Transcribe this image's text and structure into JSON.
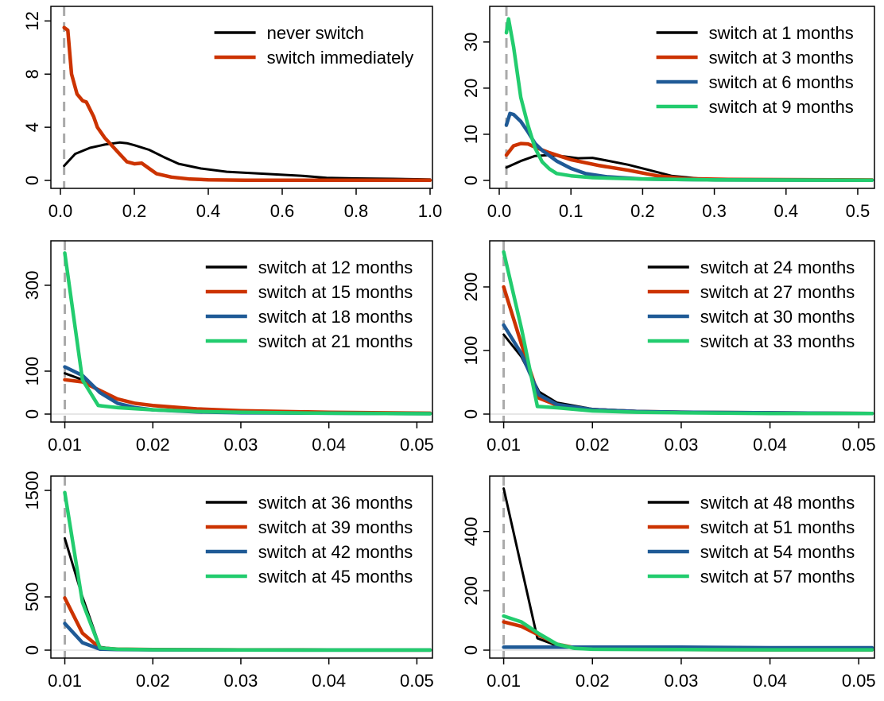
{
  "colors": {
    "black": "#000000",
    "red": "#cc3300",
    "blue": "#1f5a96",
    "green": "#22cc6e",
    "marker": "#aaaaaa"
  },
  "chart_data": [
    {
      "type": "line",
      "xlim": [
        0,
        1
      ],
      "ylim": [
        0,
        12.5
      ],
      "xticks": [
        0,
        0.2,
        0.4,
        0.6,
        0.8,
        1
      ],
      "xtick_labels": [
        "0.0",
        "0.2",
        "0.4",
        "0.6",
        "0.8",
        "1.0"
      ],
      "yticks": [
        0,
        4,
        8,
        12
      ],
      "ytick_labels": [
        "0",
        "4",
        "8",
        "12"
      ],
      "marker_x": 0.01,
      "zero_line": false,
      "legend": "top-right",
      "grid": false,
      "series": [
        {
          "name": "never switch",
          "color": "black",
          "x": [
            0.01,
            0.04,
            0.08,
            0.12,
            0.16,
            0.18,
            0.2,
            0.24,
            0.28,
            0.32,
            0.38,
            0.45,
            0.55,
            0.65,
            0.72,
            0.8,
            0.9,
            1.0
          ],
          "y": [
            1.1,
            2.0,
            2.45,
            2.7,
            2.85,
            2.8,
            2.65,
            2.3,
            1.75,
            1.25,
            0.9,
            0.65,
            0.5,
            0.35,
            0.2,
            0.15,
            0.12,
            0.08
          ]
        },
        {
          "name": "switch immediately",
          "color": "red",
          "x": [
            0.01,
            0.02,
            0.03,
            0.045,
            0.06,
            0.07,
            0.09,
            0.1,
            0.12,
            0.14,
            0.16,
            0.18,
            0.2,
            0.22,
            0.24,
            0.26,
            0.3,
            0.35,
            0.4,
            0.5,
            1.0
          ],
          "y": [
            11.5,
            11.3,
            8.0,
            6.5,
            6.0,
            5.9,
            4.8,
            4.0,
            3.2,
            2.6,
            2.0,
            1.4,
            1.25,
            1.3,
            0.9,
            0.5,
            0.25,
            0.1,
            0.05,
            0.02,
            0.01
          ]
        }
      ]
    },
    {
      "type": "line",
      "xlim": [
        0,
        0.52
      ],
      "ylim": [
        0,
        36
      ],
      "xticks": [
        0,
        0.1,
        0.2,
        0.3,
        0.4,
        0.5
      ],
      "xtick_labels": [
        "0.0",
        "0.1",
        "0.2",
        "0.3",
        "0.4",
        "0.5"
      ],
      "yticks": [
        0,
        10,
        20,
        30
      ],
      "ytick_labels": [
        "0",
        "10",
        "20",
        "30"
      ],
      "marker_x": 0.01,
      "zero_line": false,
      "legend": "top-right",
      "grid": false,
      "series": [
        {
          "name": "switch at 1 months",
          "color": "black",
          "x": [
            0.01,
            0.03,
            0.05,
            0.07,
            0.09,
            0.11,
            0.13,
            0.15,
            0.18,
            0.21,
            0.24,
            0.28,
            0.35,
            0.52
          ],
          "y": [
            2.8,
            4.2,
            5.3,
            5.5,
            5.2,
            4.8,
            4.9,
            4.3,
            3.4,
            2.2,
            1.0,
            0.4,
            0.2,
            0.1
          ]
        },
        {
          "name": "switch at 3 months",
          "color": "red",
          "x": [
            0.01,
            0.02,
            0.03,
            0.04,
            0.05,
            0.07,
            0.1,
            0.14,
            0.18,
            0.22,
            0.26,
            0.32,
            0.52
          ],
          "y": [
            5.5,
            7.5,
            8.0,
            7.9,
            7.2,
            6.0,
            4.5,
            3.2,
            2.2,
            1.0,
            0.4,
            0.2,
            0.1
          ]
        },
        {
          "name": "switch at 6 months",
          "color": "blue",
          "x": [
            0.01,
            0.015,
            0.02,
            0.03,
            0.04,
            0.05,
            0.06,
            0.08,
            0.1,
            0.12,
            0.15,
            0.2,
            0.3,
            0.52
          ],
          "y": [
            12.0,
            14.5,
            14.3,
            12.8,
            10.5,
            8.0,
            6.5,
            4.2,
            2.6,
            1.5,
            0.8,
            0.3,
            0.1,
            0.05
          ]
        },
        {
          "name": "switch at 9 months",
          "color": "green",
          "x": [
            0.01,
            0.013,
            0.02,
            0.03,
            0.04,
            0.05,
            0.06,
            0.07,
            0.08,
            0.1,
            0.13,
            0.2,
            0.3,
            0.52
          ],
          "y": [
            32.0,
            35.0,
            29.0,
            18.0,
            12.0,
            7.0,
            4.0,
            2.5,
            1.5,
            1.0,
            0.6,
            0.3,
            0.1,
            0.05
          ]
        }
      ]
    },
    {
      "type": "line",
      "xlim": [
        0.0095,
        0.0515
      ],
      "ylim": [
        0,
        385
      ],
      "xticks": [
        0.01,
        0.02,
        0.03,
        0.04,
        0.05
      ],
      "xtick_labels": [
        "0.01",
        "0.02",
        "0.03",
        "0.04",
        "0.05"
      ],
      "yticks": [
        0,
        100,
        300
      ],
      "ytick_labels": [
        "0",
        "100",
        "300"
      ],
      "marker_x": 0.01,
      "zero_line": true,
      "legend": "top-right",
      "grid": false,
      "series": [
        {
          "name": "switch at 12 months",
          "color": "black",
          "x": [
            0.01,
            0.012,
            0.014,
            0.016,
            0.018,
            0.02,
            0.025,
            0.03,
            0.04,
            0.0515
          ],
          "y": [
            95,
            80,
            55,
            25,
            15,
            10,
            5,
            3,
            2,
            1
          ]
        },
        {
          "name": "switch at 15 months",
          "color": "red",
          "x": [
            0.01,
            0.012,
            0.014,
            0.016,
            0.018,
            0.02,
            0.025,
            0.03,
            0.04,
            0.0515
          ],
          "y": [
            80,
            75,
            55,
            35,
            25,
            20,
            12,
            8,
            4,
            2
          ]
        },
        {
          "name": "switch at 18 months",
          "color": "blue",
          "x": [
            0.01,
            0.012,
            0.014,
            0.016,
            0.018,
            0.02,
            0.025,
            0.03,
            0.04,
            0.0515
          ],
          "y": [
            110,
            90,
            50,
            25,
            15,
            10,
            5,
            3,
            2,
            1
          ]
        },
        {
          "name": "switch at 21 months",
          "color": "green",
          "x": [
            0.01,
            0.012,
            0.0138,
            0.016,
            0.02,
            0.025,
            0.03,
            0.04,
            0.0515
          ],
          "y": [
            375,
            80,
            20,
            15,
            10,
            6,
            4,
            2,
            1
          ]
        }
      ]
    },
    {
      "type": "line",
      "xlim": [
        0.0095,
        0.0515
      ],
      "ylim": [
        0,
        260
      ],
      "xticks": [
        0.01,
        0.02,
        0.03,
        0.04,
        0.05
      ],
      "xtick_labels": [
        "0.01",
        "0.02",
        "0.03",
        "0.04",
        "0.05"
      ],
      "yticks": [
        0,
        100,
        200
      ],
      "ytick_labels": [
        "0",
        "100",
        "200"
      ],
      "marker_x": 0.01,
      "zero_line": true,
      "legend": "top-right",
      "grid": false,
      "series": [
        {
          "name": "switch at 24 months",
          "color": "black",
          "x": [
            0.01,
            0.012,
            0.014,
            0.016,
            0.02,
            0.025,
            0.03,
            0.04,
            0.0515
          ],
          "y": [
            125,
            90,
            35,
            18,
            8,
            5,
            3,
            2,
            1
          ]
        },
        {
          "name": "switch at 27 months",
          "color": "red",
          "x": [
            0.01,
            0.012,
            0.014,
            0.016,
            0.02,
            0.025,
            0.03,
            0.04,
            0.0515
          ],
          "y": [
            200,
            110,
            25,
            14,
            7,
            4,
            3,
            2,
            1
          ]
        },
        {
          "name": "switch at 30 months",
          "color": "blue",
          "x": [
            0.01,
            0.012,
            0.014,
            0.016,
            0.02,
            0.025,
            0.03,
            0.04,
            0.0515
          ],
          "y": [
            140,
            95,
            30,
            15,
            7,
            4,
            3,
            2,
            1
          ]
        },
        {
          "name": "switch at 33 months",
          "color": "green",
          "x": [
            0.01,
            0.012,
            0.0138,
            0.016,
            0.02,
            0.025,
            0.03,
            0.04,
            0.0515
          ],
          "y": [
            255,
            135,
            12,
            10,
            5,
            3,
            2,
            1,
            1
          ]
        }
      ]
    },
    {
      "type": "line",
      "xlim": [
        0.0095,
        0.0515
      ],
      "ylim": [
        0,
        1560
      ],
      "xticks": [
        0.01,
        0.02,
        0.03,
        0.04,
        0.05
      ],
      "xtick_labels": [
        "0.01",
        "0.02",
        "0.03",
        "0.04",
        "0.05"
      ],
      "yticks": [
        0,
        500,
        1500
      ],
      "ytick_labels": [
        "0",
        "500",
        "1500"
      ],
      "marker_x": 0.01,
      "zero_line": true,
      "legend": "top-right",
      "grid": false,
      "series": [
        {
          "name": "switch at 36 months",
          "color": "black",
          "x": [
            0.01,
            0.012,
            0.014,
            0.016,
            0.02,
            0.03,
            0.04,
            0.0515
          ],
          "y": [
            1050,
            500,
            30,
            10,
            5,
            3,
            2,
            1
          ]
        },
        {
          "name": "switch at 39 months",
          "color": "red",
          "x": [
            0.01,
            0.012,
            0.014,
            0.016,
            0.02,
            0.03,
            0.04,
            0.0515
          ],
          "y": [
            490,
            160,
            20,
            10,
            5,
            3,
            2,
            1
          ]
        },
        {
          "name": "switch at 42 months",
          "color": "blue",
          "x": [
            0.01,
            0.012,
            0.014,
            0.016,
            0.02,
            0.03,
            0.04,
            0.0515
          ],
          "y": [
            250,
            70,
            10,
            5,
            3,
            2,
            1,
            1
          ]
        },
        {
          "name": "switch at 45 months",
          "color": "green",
          "x": [
            0.01,
            0.012,
            0.014,
            0.016,
            0.02,
            0.03,
            0.04,
            0.0515
          ],
          "y": [
            1480,
            450,
            20,
            8,
            4,
            2,
            1,
            1
          ]
        }
      ]
    },
    {
      "type": "line",
      "xlim": [
        0.0095,
        0.0515
      ],
      "ylim": [
        0,
        560
      ],
      "xticks": [
        0.01,
        0.02,
        0.03,
        0.04,
        0.05
      ],
      "xtick_labels": [
        "0.01",
        "0.02",
        "0.03",
        "0.04",
        "0.05"
      ],
      "yticks": [
        0,
        200,
        400
      ],
      "ytick_labels": [
        "0",
        "200",
        "400"
      ],
      "marker_x": 0.01,
      "zero_line": true,
      "legend": "top-right",
      "grid": false,
      "series": [
        {
          "name": "switch at 48 months",
          "color": "black",
          "x": [
            0.01,
            0.0138,
            0.016,
            0.02,
            0.03,
            0.04,
            0.0515
          ],
          "y": [
            545,
            40,
            15,
            5,
            3,
            2,
            1
          ]
        },
        {
          "name": "switch at 51 months",
          "color": "red",
          "x": [
            0.01,
            0.012,
            0.014,
            0.016,
            0.018,
            0.02,
            0.03,
            0.04,
            0.0515
          ],
          "y": [
            95,
            80,
            50,
            20,
            8,
            4,
            2,
            1,
            1
          ]
        },
        {
          "name": "switch at 54 months",
          "color": "blue",
          "x": [
            0.01,
            0.02,
            0.03,
            0.04,
            0.0515
          ],
          "y": [
            10,
            10,
            10,
            8,
            8
          ]
        },
        {
          "name": "switch at 57 months",
          "color": "green",
          "x": [
            0.01,
            0.012,
            0.014,
            0.016,
            0.018,
            0.02,
            0.03,
            0.04,
            0.0515
          ],
          "y": [
            115,
            95,
            55,
            20,
            6,
            3,
            2,
            1,
            1
          ]
        }
      ]
    }
  ]
}
